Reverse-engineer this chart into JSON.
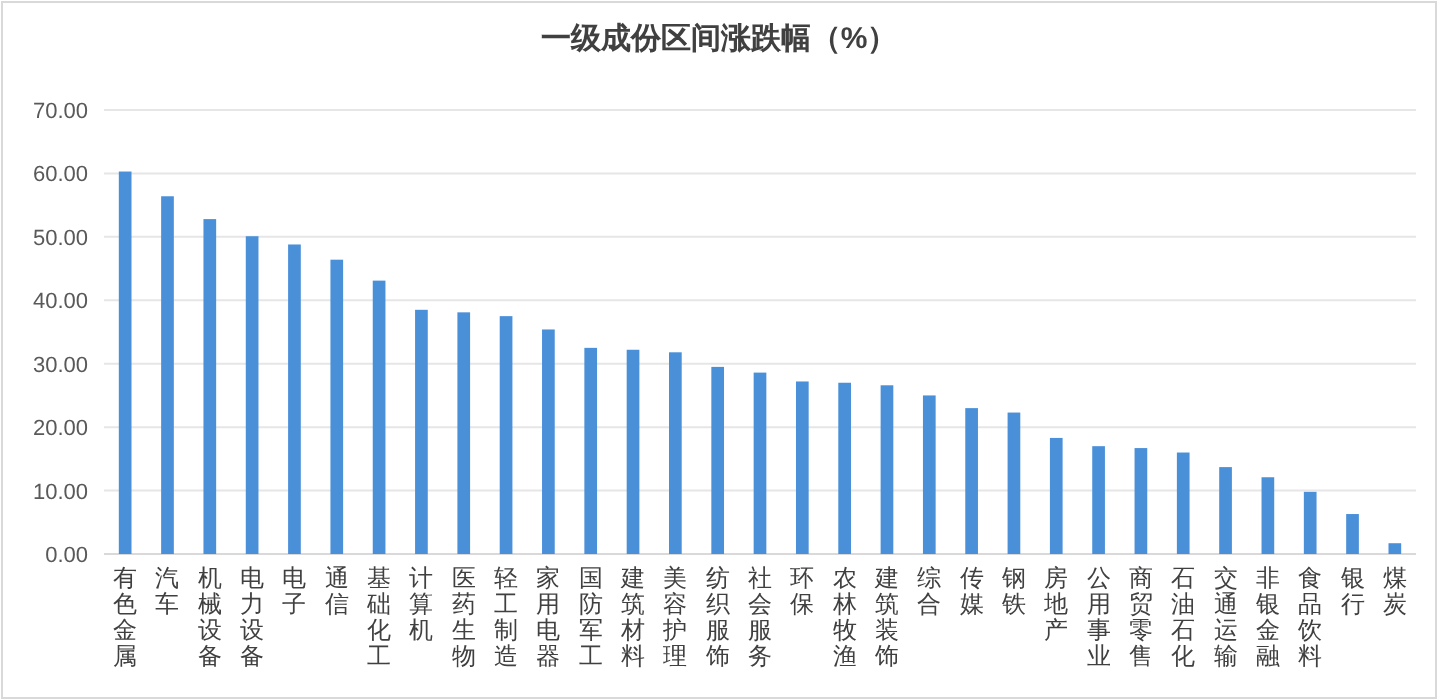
{
  "chart_data": {
    "type": "bar",
    "title": "一级成份区间涨跌幅（%）",
    "categories": [
      "有色金属",
      "汽车",
      "机械设备",
      "电力设备",
      "电子",
      "通信",
      "基础化工",
      "计算机",
      "医药生物",
      "轻工制造",
      "家用电器",
      "国防军工",
      "建筑材料",
      "美容护理",
      "纺织服饰",
      "社会服务",
      "环保",
      "农林牧渔",
      "建筑装饰",
      "综合",
      "传媒",
      "钢铁",
      "房地产",
      "公用事业",
      "商贸零售",
      "石油石化",
      "交通运输",
      "非银金融",
      "食品饮料",
      "银行",
      "煤炭"
    ],
    "values": [
      60.3,
      56.4,
      52.8,
      50.1,
      48.8,
      46.4,
      43.1,
      38.5,
      38.1,
      37.5,
      35.4,
      32.5,
      32.2,
      31.8,
      29.5,
      28.6,
      27.2,
      27.0,
      26.6,
      25.0,
      23.0,
      22.3,
      18.3,
      17.0,
      16.7,
      16.0,
      13.7,
      12.1,
      9.8,
      6.3,
      1.7
    ],
    "color": "#4a90d9",
    "ylim": [
      0,
      70
    ],
    "yticks": [
      {
        "value": 0,
        "label": "0.00"
      },
      {
        "value": 10,
        "label": "10.00"
      },
      {
        "value": 20,
        "label": "20.00"
      },
      {
        "value": 30,
        "label": "30.00"
      },
      {
        "value": 40,
        "label": "40.00"
      },
      {
        "value": 50,
        "label": "50.00"
      },
      {
        "value": 60,
        "label": "60.00"
      },
      {
        "value": 70,
        "label": "70.00"
      }
    ],
    "grid": "y"
  }
}
